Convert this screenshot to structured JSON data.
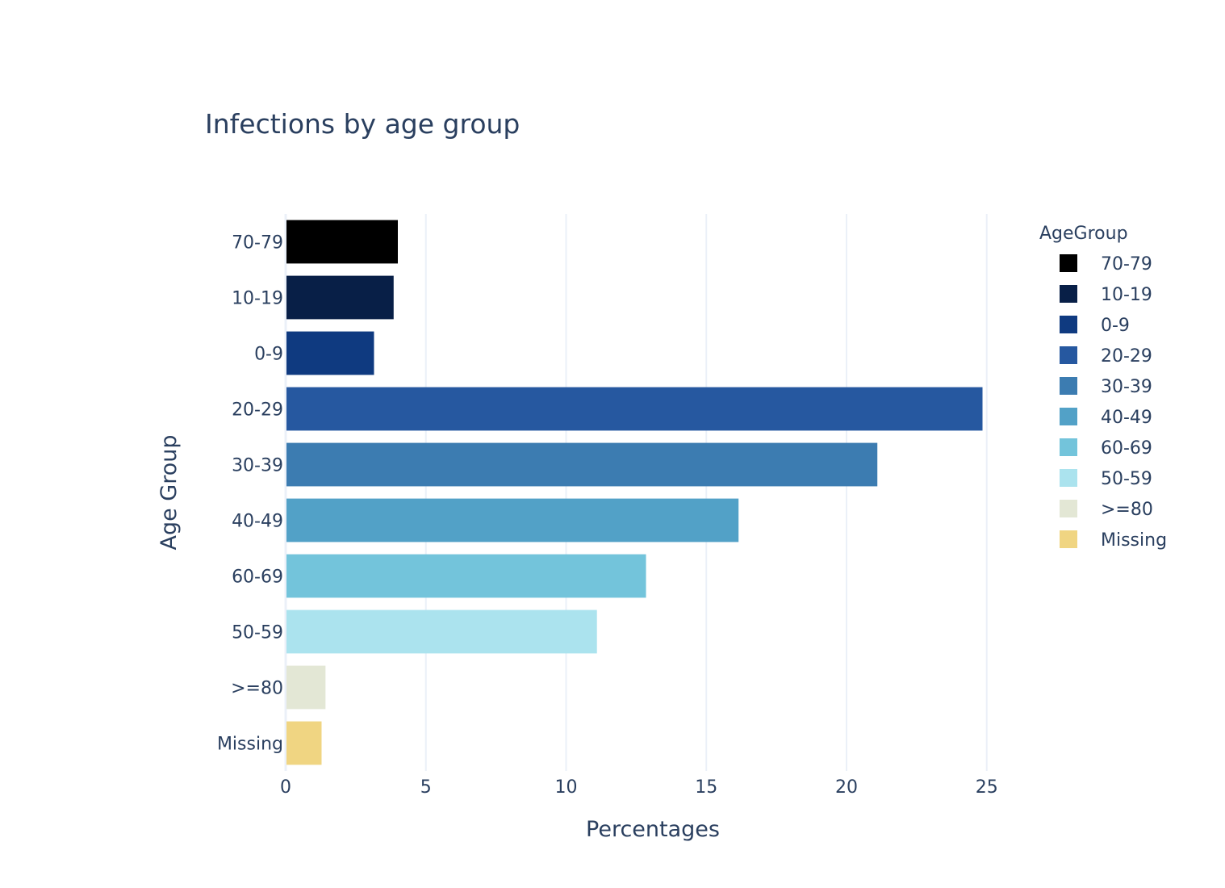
{
  "chart_data": {
    "type": "bar",
    "orientation": "horizontal",
    "title": "Infections by age group",
    "xlabel": "Percentages",
    "ylabel": "Age Group",
    "xlim": [
      0,
      25.9
    ],
    "x_ticks": [
      0,
      5,
      10,
      15,
      20,
      25
    ],
    "grid": true,
    "legend_title": "AgeGroup",
    "legend_position": "right",
    "categories": [
      "70-79",
      "10-19",
      "0-9",
      "20-29",
      "30-39",
      "40-49",
      "60-69",
      "50-59",
      ">=80",
      "Missing"
    ],
    "values": [
      4.0,
      3.85,
      3.15,
      24.85,
      21.1,
      16.15,
      12.85,
      11.1,
      1.42,
      1.28
    ],
    "colors": [
      "#000000",
      "#081f47",
      "#0f3a80",
      "#2658a0",
      "#3c7cb1",
      "#52a1c7",
      "#73c4db",
      "#abe3ee",
      "#e3e7d5",
      "#f0d582"
    ]
  }
}
